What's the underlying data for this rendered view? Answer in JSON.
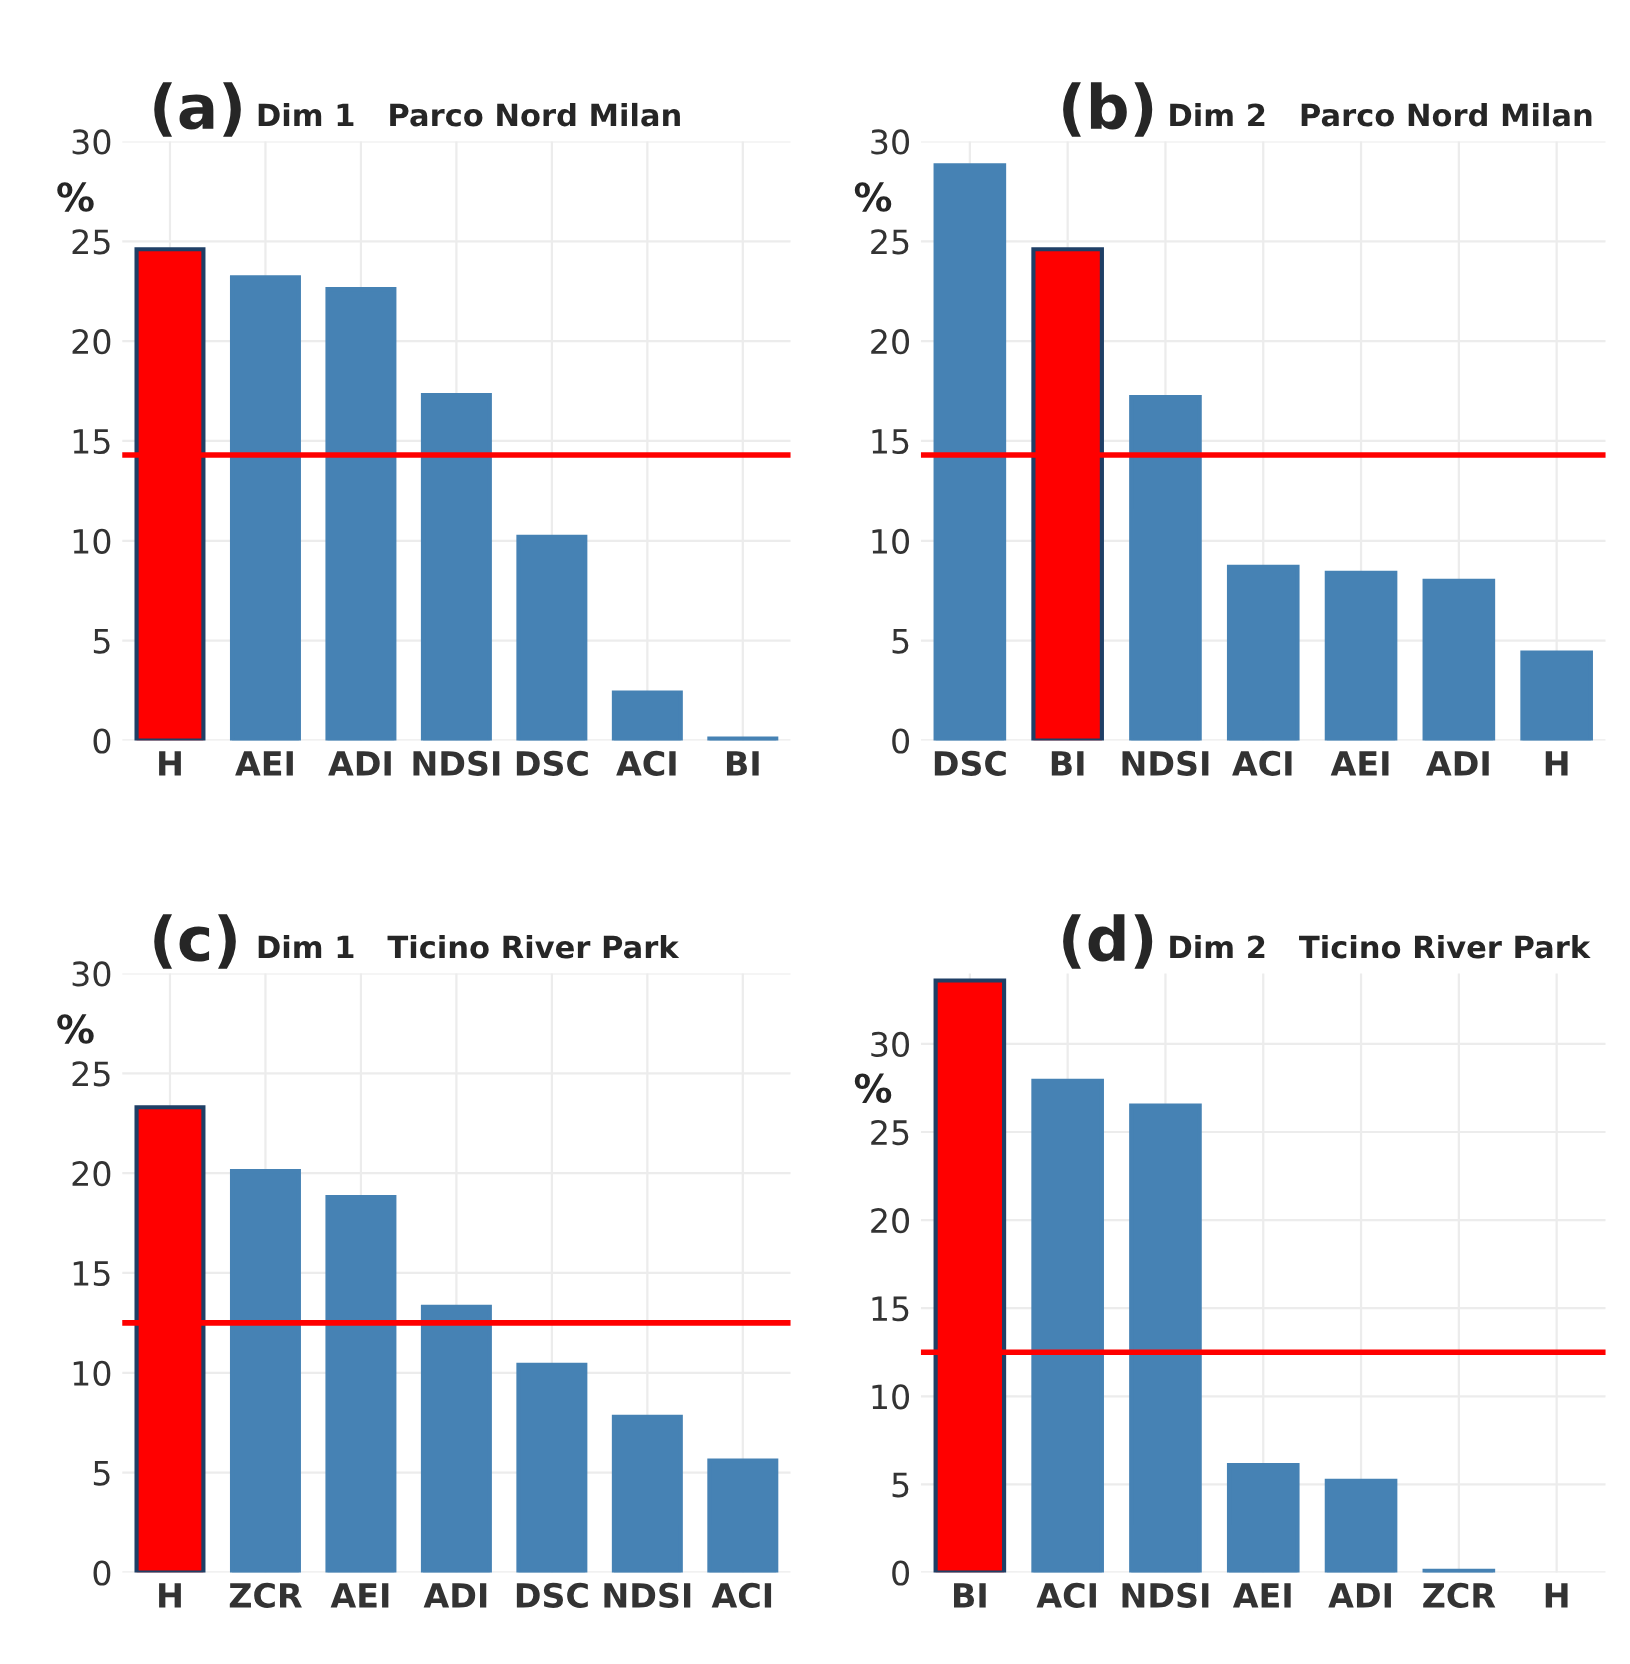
{
  "chart_data": [
    {
      "type": "bar",
      "title": "(a)",
      "subtitle": "Dim 1   Parco Nord Milan",
      "ylabel": "%",
      "categories": [
        "H",
        "AEI",
        "ADI",
        "NDSI",
        "DSC",
        "ACI",
        "BI"
      ],
      "values": [
        24.6,
        23.2,
        22.6,
        17.3,
        10.2,
        2.4,
        0.1
      ],
      "colors": [
        "#ff0000",
        "#4682b4",
        "#4682b4",
        "#4682b4",
        "#4682b4",
        "#4682b4",
        "#4682b4"
      ],
      "ylim": [
        0,
        30
      ],
      "yticks": [
        0,
        5,
        10,
        15,
        20,
        25,
        30
      ],
      "grid": true,
      "ref_lines": [
        {
          "axis": "y",
          "value": 14.3,
          "label": null,
          "color": "#ff0000"
        }
      ]
    },
    {
      "type": "bar",
      "title": "(b)",
      "subtitle": "Dim 2   Parco Nord Milan",
      "ylabel": "%",
      "categories": [
        "DSC",
        "BI",
        "NDSI",
        "ACI",
        "AEI",
        "ADI",
        "H"
      ],
      "values": [
        28.8,
        24.6,
        17.2,
        8.7,
        8.4,
        8.0,
        4.4
      ],
      "colors": [
        "#4682b4",
        "#ff0000",
        "#4682b4",
        "#4682b4",
        "#4682b4",
        "#4682b4",
        "#4682b4"
      ],
      "ylim": [
        0,
        30
      ],
      "yticks": [
        0,
        5,
        10,
        15,
        20,
        25,
        30
      ],
      "grid": true,
      "ref_lines": [
        {
          "axis": "y",
          "value": 14.3,
          "label": null,
          "color": "#ff0000"
        }
      ]
    },
    {
      "type": "bar",
      "title": "(c)",
      "subtitle": "Dim 1   Ticino River Park",
      "ylabel": "%",
      "categories": [
        "H",
        "ZCR",
        "AEI",
        "ADI",
        "DSC",
        "NDSI",
        "ACI"
      ],
      "values": [
        23.3,
        20.1,
        18.8,
        13.3,
        10.4,
        7.8,
        5.6
      ],
      "colors": [
        "#ff0000",
        "#4682b4",
        "#4682b4",
        "#4682b4",
        "#4682b4",
        "#4682b4",
        "#4682b4"
      ],
      "ylim": [
        0,
        30
      ],
      "yticks": [
        0,
        5,
        10,
        15,
        20,
        25,
        30
      ],
      "grid": true,
      "ref_lines": [
        {
          "axis": "y",
          "value": 12.5,
          "label": null,
          "color": "#ff0000"
        }
      ]
    },
    {
      "type": "bar",
      "title": "(d)",
      "subtitle": "Dim 2   Ticino River Park",
      "ylabel": "%",
      "categories": [
        "BI",
        "ACI",
        "NDSI",
        "AEI",
        "ADI",
        "ZCR",
        "H"
      ],
      "values": [
        33.6,
        27.9,
        26.5,
        6.1,
        5.2,
        0.1,
        null
      ],
      "colors": [
        "#ff0000",
        "#4682b4",
        "#4682b4",
        "#4682b4",
        "#4682b4",
        "#4682b4",
        "#4682b4"
      ],
      "ylim": [
        0,
        34
      ],
      "yticks": [
        0,
        5,
        10,
        15,
        20,
        25,
        30
      ],
      "grid": true,
      "ref_lines": [
        {
          "axis": "y",
          "value": 12.5,
          "label": null,
          "color": "#ff0000"
        }
      ]
    }
  ]
}
